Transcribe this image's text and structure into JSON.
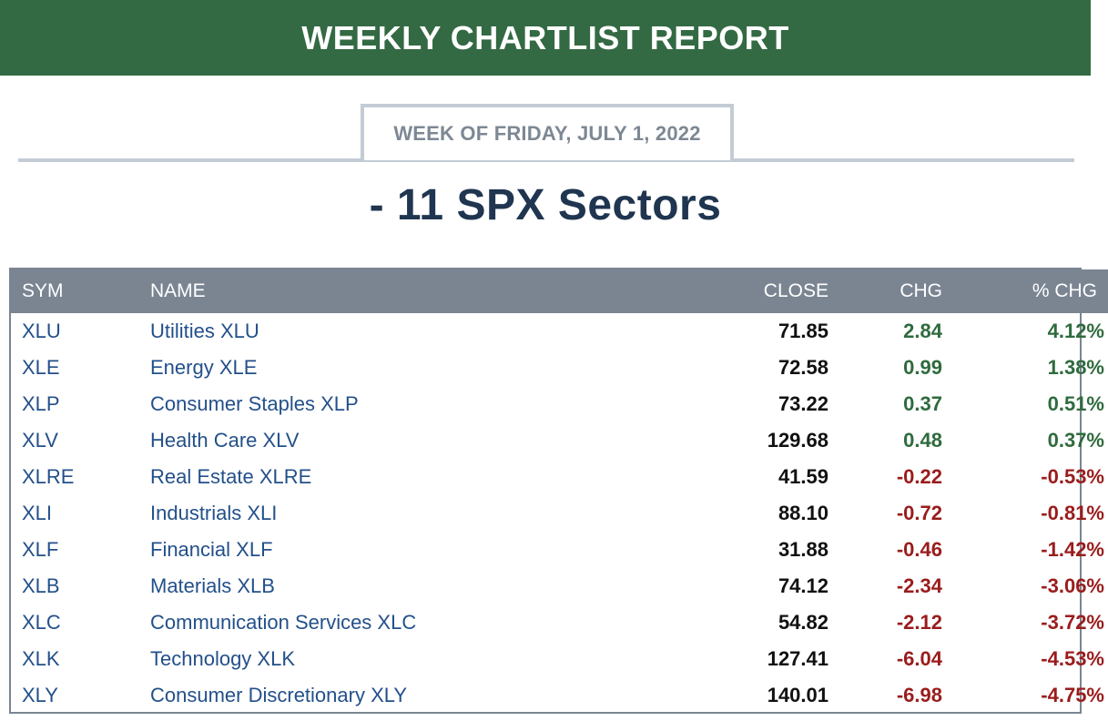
{
  "banner": {
    "title": "WEEKLY CHARTLIST REPORT"
  },
  "week": {
    "label": "WEEK OF FRIDAY, JULY 1, 2022"
  },
  "section": {
    "title": "- 11 SPX Sectors"
  },
  "table": {
    "columns": [
      "SYM",
      "NAME",
      "CLOSE",
      "CHG",
      "% CHG"
    ],
    "rows": [
      {
        "sym": "XLU",
        "name": "Utilities XLU",
        "close": "71.85",
        "chg": "2.84",
        "pct": "4.12%",
        "dir": "pos"
      },
      {
        "sym": "XLE",
        "name": "Energy XLE",
        "close": "72.58",
        "chg": "0.99",
        "pct": "1.38%",
        "dir": "pos"
      },
      {
        "sym": "XLP",
        "name": "Consumer Staples XLP",
        "close": "73.22",
        "chg": "0.37",
        "pct": "0.51%",
        "dir": "pos"
      },
      {
        "sym": "XLV",
        "name": "Health Care XLV",
        "close": "129.68",
        "chg": "0.48",
        "pct": "0.37%",
        "dir": "pos"
      },
      {
        "sym": "XLRE",
        "name": "Real Estate XLRE",
        "close": "41.59",
        "chg": "-0.22",
        "pct": "-0.53%",
        "dir": "neg"
      },
      {
        "sym": "XLI",
        "name": "Industrials XLI",
        "close": "88.10",
        "chg": "-0.72",
        "pct": "-0.81%",
        "dir": "neg"
      },
      {
        "sym": "XLF",
        "name": "Financial XLF",
        "close": "31.88",
        "chg": "-0.46",
        "pct": "-1.42%",
        "dir": "neg"
      },
      {
        "sym": "XLB",
        "name": "Materials XLB",
        "close": "74.12",
        "chg": "-2.34",
        "pct": "-3.06%",
        "dir": "neg"
      },
      {
        "sym": "XLC",
        "name": "Communication Services XLC",
        "close": "54.82",
        "chg": "-2.12",
        "pct": "-3.72%",
        "dir": "neg"
      },
      {
        "sym": "XLK",
        "name": "Technology XLK",
        "close": "127.41",
        "chg": "-6.04",
        "pct": "-4.53%",
        "dir": "neg"
      },
      {
        "sym": "XLY",
        "name": "Consumer Discretionary XLY",
        "close": "140.01",
        "chg": "-6.98",
        "pct": "-4.75%",
        "dir": "neg"
      }
    ]
  },
  "colors": {
    "banner": "#336a43",
    "positive": "#2f6b3d",
    "negative": "#9a1c1c",
    "link": "#23508a",
    "header": "#7b8592",
    "title": "#1f3550"
  }
}
